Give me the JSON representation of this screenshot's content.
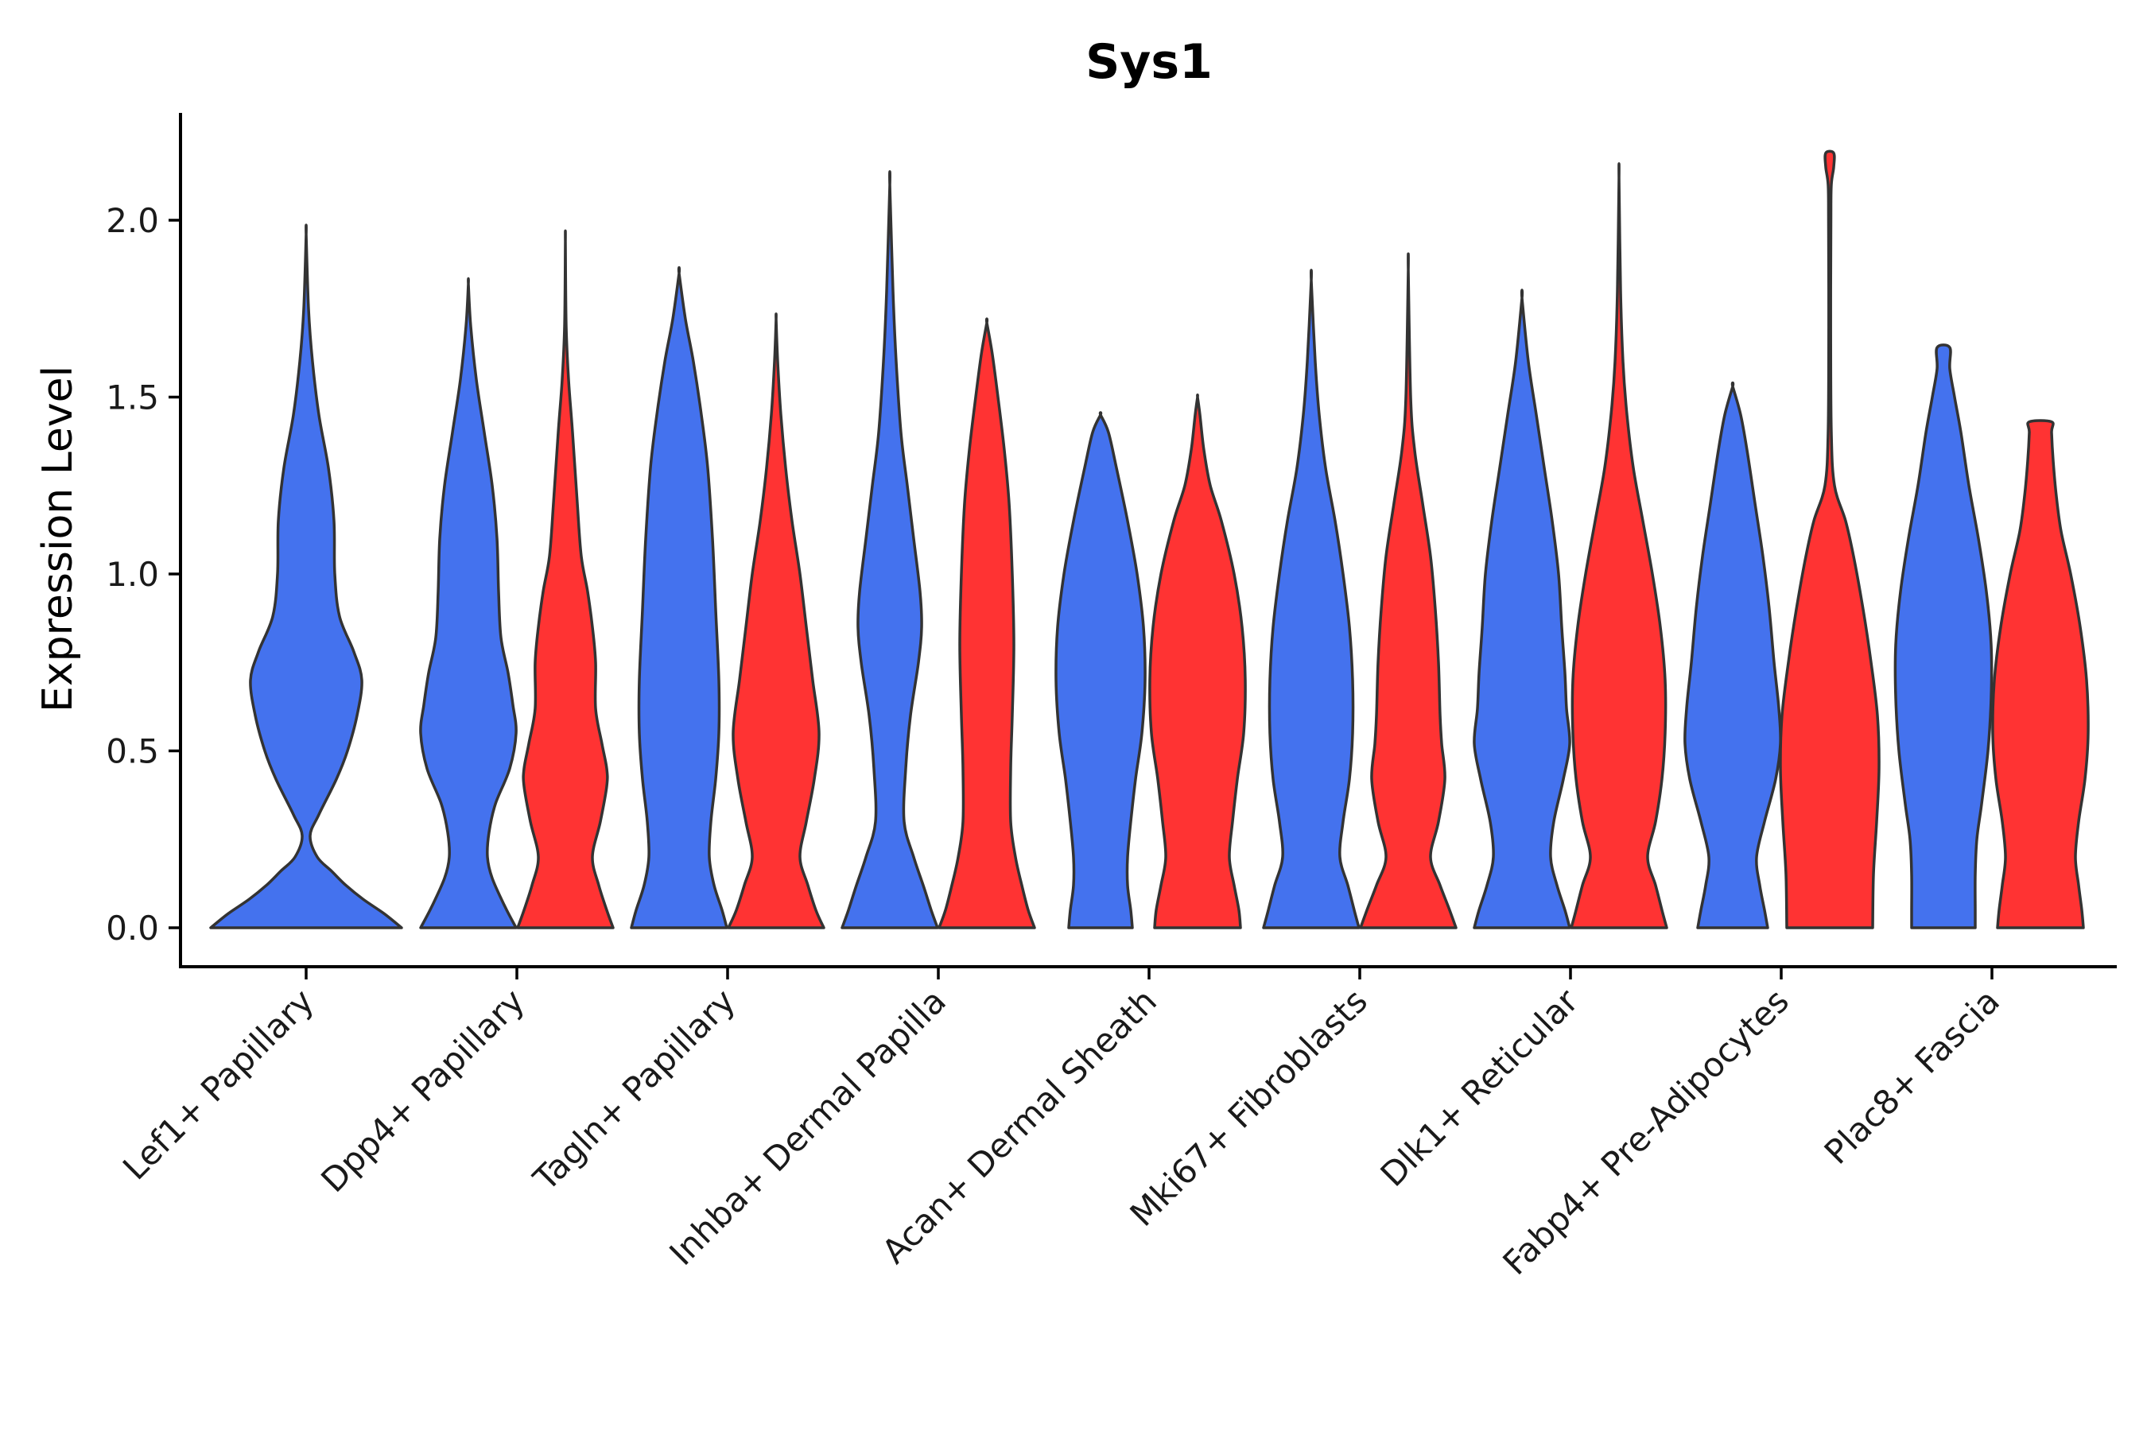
{
  "chart_data": {
    "type": "violin",
    "title": "Sys1",
    "xlabel": "",
    "ylabel": "Expression Level",
    "ylim": [
      -0.11,
      2.3
    ],
    "yticks": [
      "0.0",
      "0.5",
      "1.0",
      "1.5",
      "2.0"
    ],
    "ytick_values": [
      0,
      0.5,
      1.0,
      1.5,
      2.0
    ],
    "categories": [
      "Lef1+ Papillary",
      "Dpp4+ Papillary",
      "Tagln+ Papillary",
      "Inhba+ Dermal Papilla",
      "Acan+ Dermal Sheath",
      "Mki67+ Fibroblasts",
      "Dlk1+ Reticular",
      "Fabp4+ Pre-Adipocytes",
      "Plac8+ Fascia"
    ],
    "colors": {
      "blue": "#4472EE",
      "red": "#FF3333"
    },
    "violins": [
      {
        "category": 0,
        "color": "blue",
        "offset": 0,
        "max": 1.96,
        "profile": [
          [
            0,
            120
          ],
          [
            0.04,
            98
          ],
          [
            0.08,
            72
          ],
          [
            0.12,
            50
          ],
          [
            0.16,
            32
          ],
          [
            0.2,
            14
          ],
          [
            0.26,
            5
          ],
          [
            0.32,
            16
          ],
          [
            0.42,
            38
          ],
          [
            0.5,
            52
          ],
          [
            0.6,
            64
          ],
          [
            0.7,
            70
          ],
          [
            0.78,
            60
          ],
          [
            0.88,
            42
          ],
          [
            1.0,
            36
          ],
          [
            1.15,
            35
          ],
          [
            1.3,
            28
          ],
          [
            1.45,
            16
          ],
          [
            1.6,
            8
          ],
          [
            1.75,
            3
          ],
          [
            1.96,
            0
          ]
        ]
      },
      {
        "category": 1,
        "color": "blue",
        "offset": -61,
        "max": 1.82,
        "profile": [
          [
            0,
            60
          ],
          [
            0.06,
            46
          ],
          [
            0.14,
            30
          ],
          [
            0.2,
            24
          ],
          [
            0.27,
            26
          ],
          [
            0.35,
            34
          ],
          [
            0.45,
            52
          ],
          [
            0.55,
            60
          ],
          [
            0.63,
            56
          ],
          [
            0.72,
            50
          ],
          [
            0.82,
            41
          ],
          [
            0.95,
            38
          ],
          [
            1.1,
            36
          ],
          [
            1.25,
            30
          ],
          [
            1.4,
            20
          ],
          [
            1.55,
            10
          ],
          [
            1.7,
            3
          ],
          [
            1.82,
            0
          ]
        ]
      },
      {
        "category": 1,
        "color": "red",
        "offset": 61,
        "max": 1.94,
        "profile": [
          [
            0,
            60
          ],
          [
            0.05,
            52
          ],
          [
            0.12,
            42
          ],
          [
            0.2,
            34
          ],
          [
            0.3,
            44
          ],
          [
            0.4,
            52
          ],
          [
            0.45,
            52
          ],
          [
            0.52,
            46
          ],
          [
            0.62,
            38
          ],
          [
            0.75,
            38
          ],
          [
            0.85,
            34
          ],
          [
            0.95,
            28
          ],
          [
            1.05,
            20
          ],
          [
            1.2,
            15
          ],
          [
            1.4,
            9
          ],
          [
            1.55,
            4
          ],
          [
            1.7,
            1
          ],
          [
            1.94,
            0
          ]
        ]
      },
      {
        "category": 2,
        "color": "blue",
        "offset": -61,
        "max": 1.85,
        "profile": [
          [
            0,
            60
          ],
          [
            0.05,
            54
          ],
          [
            0.12,
            44
          ],
          [
            0.2,
            38
          ],
          [
            0.3,
            40
          ],
          [
            0.42,
            46
          ],
          [
            0.55,
            50
          ],
          [
            0.7,
            50
          ],
          [
            0.9,
            46
          ],
          [
            1.1,
            42
          ],
          [
            1.3,
            36
          ],
          [
            1.45,
            28
          ],
          [
            1.6,
            18
          ],
          [
            1.72,
            8
          ],
          [
            1.85,
            0
          ]
        ]
      },
      {
        "category": 2,
        "color": "red",
        "offset": 61,
        "max": 1.72,
        "profile": [
          [
            0,
            60
          ],
          [
            0.05,
            50
          ],
          [
            0.12,
            40
          ],
          [
            0.2,
            30
          ],
          [
            0.3,
            38
          ],
          [
            0.42,
            48
          ],
          [
            0.55,
            54
          ],
          [
            0.7,
            46
          ],
          [
            0.85,
            38
          ],
          [
            1.0,
            30
          ],
          [
            1.15,
            20
          ],
          [
            1.3,
            12
          ],
          [
            1.45,
            6
          ],
          [
            1.6,
            2
          ],
          [
            1.72,
            0
          ]
        ]
      },
      {
        "category": 3,
        "color": "blue",
        "offset": -61,
        "max": 2.1,
        "profile": [
          [
            0,
            60
          ],
          [
            0.05,
            52
          ],
          [
            0.12,
            42
          ],
          [
            0.2,
            30
          ],
          [
            0.3,
            18
          ],
          [
            0.45,
            20
          ],
          [
            0.6,
            26
          ],
          [
            0.75,
            36
          ],
          [
            0.85,
            40
          ],
          [
            0.95,
            38
          ],
          [
            1.1,
            30
          ],
          [
            1.25,
            22
          ],
          [
            1.4,
            14
          ],
          [
            1.6,
            8
          ],
          [
            1.8,
            4
          ],
          [
            2.1,
            0
          ]
        ]
      },
      {
        "category": 3,
        "color": "red",
        "offset": 61,
        "max": 1.71,
        "profile": [
          [
            0,
            60
          ],
          [
            0.05,
            52
          ],
          [
            0.12,
            44
          ],
          [
            0.2,
            36
          ],
          [
            0.3,
            30
          ],
          [
            0.45,
            30
          ],
          [
            0.6,
            32
          ],
          [
            0.8,
            34
          ],
          [
            1.0,
            32
          ],
          [
            1.2,
            28
          ],
          [
            1.35,
            22
          ],
          [
            1.5,
            14
          ],
          [
            1.62,
            7
          ],
          [
            1.71,
            0
          ]
        ]
      },
      {
        "category": 4,
        "color": "blue",
        "offset": -61,
        "max": 1.45,
        "profile": [
          [
            0,
            40
          ],
          [
            0.05,
            38
          ],
          [
            0.12,
            34
          ],
          [
            0.2,
            34
          ],
          [
            0.3,
            38
          ],
          [
            0.42,
            44
          ],
          [
            0.55,
            52
          ],
          [
            0.7,
            56
          ],
          [
            0.85,
            54
          ],
          [
            1.0,
            46
          ],
          [
            1.15,
            34
          ],
          [
            1.3,
            20
          ],
          [
            1.4,
            10
          ],
          [
            1.45,
            0
          ]
        ]
      },
      {
        "category": 4,
        "color": "red",
        "offset": 61,
        "max": 1.5,
        "profile": [
          [
            0,
            54
          ],
          [
            0.05,
            52
          ],
          [
            0.12,
            46
          ],
          [
            0.2,
            40
          ],
          [
            0.3,
            44
          ],
          [
            0.42,
            50
          ],
          [
            0.55,
            58
          ],
          [
            0.7,
            60
          ],
          [
            0.85,
            56
          ],
          [
            1.0,
            46
          ],
          [
            1.15,
            30
          ],
          [
            1.25,
            16
          ],
          [
            1.35,
            8
          ],
          [
            1.45,
            3
          ],
          [
            1.5,
            0
          ]
        ]
      },
      {
        "category": 5,
        "color": "blue",
        "offset": -61,
        "max": 1.83,
        "profile": [
          [
            0,
            60
          ],
          [
            0.05,
            54
          ],
          [
            0.12,
            46
          ],
          [
            0.2,
            36
          ],
          [
            0.3,
            40
          ],
          [
            0.42,
            48
          ],
          [
            0.55,
            52
          ],
          [
            0.7,
            52
          ],
          [
            0.85,
            48
          ],
          [
            1.0,
            40
          ],
          [
            1.15,
            30
          ],
          [
            1.3,
            18
          ],
          [
            1.45,
            10
          ],
          [
            1.6,
            5
          ],
          [
            1.83,
            0
          ]
        ]
      },
      {
        "category": 5,
        "color": "red",
        "offset": 61,
        "max": 1.86,
        "profile": [
          [
            0,
            60
          ],
          [
            0.05,
            52
          ],
          [
            0.12,
            40
          ],
          [
            0.2,
            28
          ],
          [
            0.3,
            38
          ],
          [
            0.42,
            46
          ],
          [
            0.52,
            42
          ],
          [
            0.6,
            40
          ],
          [
            0.75,
            38
          ],
          [
            0.9,
            34
          ],
          [
            1.05,
            28
          ],
          [
            1.2,
            18
          ],
          [
            1.35,
            8
          ],
          [
            1.5,
            3
          ],
          [
            1.86,
            0
          ]
        ]
      },
      {
        "category": 6,
        "color": "blue",
        "offset": -61,
        "max": 1.78,
        "profile": [
          [
            0,
            60
          ],
          [
            0.05,
            54
          ],
          [
            0.12,
            44
          ],
          [
            0.2,
            36
          ],
          [
            0.3,
            40
          ],
          [
            0.42,
            52
          ],
          [
            0.52,
            60
          ],
          [
            0.62,
            56
          ],
          [
            0.72,
            54
          ],
          [
            0.85,
            50
          ],
          [
            1.0,
            46
          ],
          [
            1.15,
            38
          ],
          [
            1.3,
            28
          ],
          [
            1.45,
            18
          ],
          [
            1.6,
            8
          ],
          [
            1.78,
            0
          ]
        ]
      },
      {
        "category": 6,
        "color": "red",
        "offset": 61,
        "max": 2.12,
        "profile": [
          [
            0,
            60
          ],
          [
            0.05,
            54
          ],
          [
            0.12,
            46
          ],
          [
            0.2,
            36
          ],
          [
            0.3,
            46
          ],
          [
            0.42,
            54
          ],
          [
            0.55,
            58
          ],
          [
            0.7,
            58
          ],
          [
            0.85,
            52
          ],
          [
            1.0,
            42
          ],
          [
            1.15,
            30
          ],
          [
            1.3,
            18
          ],
          [
            1.45,
            10
          ],
          [
            1.6,
            5
          ],
          [
            1.8,
            2
          ],
          [
            2.12,
            0
          ]
        ]
      },
      {
        "category": 7,
        "color": "blue",
        "offset": -61,
        "max": 1.53,
        "profile": [
          [
            0,
            44
          ],
          [
            0.05,
            40
          ],
          [
            0.12,
            34
          ],
          [
            0.2,
            30
          ],
          [
            0.3,
            40
          ],
          [
            0.42,
            54
          ],
          [
            0.52,
            60
          ],
          [
            0.62,
            58
          ],
          [
            0.75,
            52
          ],
          [
            0.9,
            46
          ],
          [
            1.05,
            38
          ],
          [
            1.2,
            28
          ],
          [
            1.35,
            18
          ],
          [
            1.45,
            10
          ],
          [
            1.53,
            0
          ]
        ]
      },
      {
        "category": 7,
        "color": "red",
        "offset": 61,
        "max": 2.19,
        "profile": [
          [
            0,
            54
          ],
          [
            0.15,
            55
          ],
          [
            0.3,
            59
          ],
          [
            0.45,
            62
          ],
          [
            0.6,
            60
          ],
          [
            0.75,
            52
          ],
          [
            0.9,
            42
          ],
          [
            1.05,
            30
          ],
          [
            1.15,
            20
          ],
          [
            1.25,
            6
          ],
          [
            1.4,
            2
          ],
          [
            1.7,
            1.2
          ],
          [
            2.0,
            1.5
          ],
          [
            2.1,
            2
          ],
          [
            2.15,
            5
          ],
          [
            2.19,
            5
          ]
        ]
      },
      {
        "category": 8,
        "color": "blue",
        "offset": -61,
        "max": 1.64,
        "profile": [
          [
            0,
            40
          ],
          [
            0.05,
            40
          ],
          [
            0.15,
            40
          ],
          [
            0.25,
            42
          ],
          [
            0.35,
            48
          ],
          [
            0.5,
            56
          ],
          [
            0.65,
            60
          ],
          [
            0.8,
            60
          ],
          [
            0.95,
            54
          ],
          [
            1.1,
            44
          ],
          [
            1.25,
            32
          ],
          [
            1.4,
            22
          ],
          [
            1.5,
            14
          ],
          [
            1.58,
            8
          ],
          [
            1.64,
            8
          ]
        ]
      },
      {
        "category": 8,
        "color": "red",
        "offset": 61,
        "max": 1.43,
        "profile": [
          [
            0,
            54
          ],
          [
            0.05,
            52
          ],
          [
            0.12,
            48
          ],
          [
            0.2,
            44
          ],
          [
            0.3,
            48
          ],
          [
            0.42,
            56
          ],
          [
            0.55,
            60
          ],
          [
            0.7,
            58
          ],
          [
            0.85,
            50
          ],
          [
            1.0,
            38
          ],
          [
            1.12,
            26
          ],
          [
            1.22,
            20
          ],
          [
            1.32,
            16
          ],
          [
            1.4,
            14
          ],
          [
            1.43,
            14
          ]
        ]
      }
    ]
  }
}
